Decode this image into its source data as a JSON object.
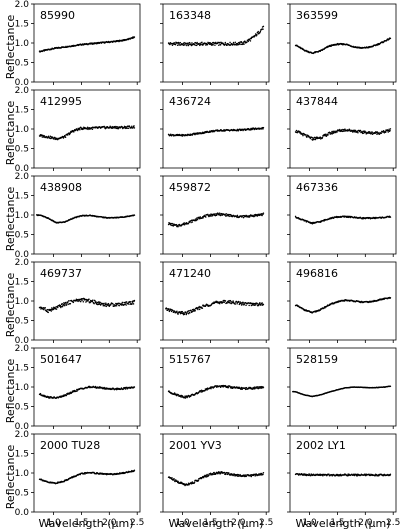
{
  "chart_data": {
    "type": "scatter",
    "layout": {
      "rows": 6,
      "cols": 3,
      "sharex": true,
      "sharey": true
    },
    "xlabel": "Wavelength (μm)",
    "ylabel": "Reflectance",
    "xlim": [
      0.65,
      2.55
    ],
    "ylim": [
      0.0,
      2.0
    ],
    "xticks": [
      1.0,
      1.5,
      2.0,
      2.5
    ],
    "xticklabels": [
      "1.0",
      "1.5",
      "2.0",
      "2.5"
    ],
    "yticks": [
      0.0,
      0.5,
      1.0,
      1.5,
      2.0
    ],
    "yticklabels": [
      "0.0",
      "0.5",
      "1.0",
      "1.5",
      "2.0"
    ],
    "marker_color": "#000000",
    "x": [
      0.75,
      0.9,
      1.05,
      1.2,
      1.35,
      1.5,
      1.65,
      1.8,
      1.95,
      2.1,
      2.25,
      2.35,
      2.45
    ],
    "panels": [
      {
        "label": "85990",
        "x_range": [
          0.75,
          2.45
        ],
        "y": [
          0.78,
          0.83,
          0.87,
          0.9,
          0.93,
          0.96,
          0.98,
          1.0,
          1.02,
          1.04,
          1.07,
          1.1,
          1.15
        ],
        "noise": 0.015
      },
      {
        "label": "163348",
        "x_range": [
          0.75,
          2.45
        ],
        "y": [
          0.98,
          0.98,
          0.97,
          0.97,
          0.98,
          0.98,
          0.98,
          0.98,
          0.98,
          1.0,
          1.12,
          1.25,
          1.4
        ],
        "noise": 0.04
      },
      {
        "label": "363599",
        "x_range": [
          0.75,
          2.45
        ],
        "y": [
          0.95,
          0.82,
          0.74,
          0.8,
          0.92,
          0.97,
          0.97,
          0.9,
          0.87,
          0.9,
          0.98,
          1.05,
          1.12
        ],
        "noise": 0.015
      },
      {
        "label": "412995",
        "x_range": [
          0.75,
          2.45
        ],
        "y": [
          0.83,
          0.8,
          0.75,
          0.8,
          0.95,
          1.02,
          1.02,
          1.03,
          1.04,
          1.04,
          1.04,
          1.05,
          1.05
        ],
        "noise": 0.03
      },
      {
        "label": "436724",
        "x_range": [
          0.75,
          2.45
        ],
        "y": [
          0.85,
          0.84,
          0.84,
          0.87,
          0.9,
          0.94,
          0.96,
          0.97,
          0.97,
          0.98,
          1.0,
          1.01,
          1.02
        ],
        "noise": 0.02
      },
      {
        "label": "437844",
        "x_range": [
          0.75,
          2.45
        ],
        "y": [
          0.95,
          0.85,
          0.75,
          0.78,
          0.88,
          0.95,
          0.98,
          0.95,
          0.92,
          0.9,
          0.9,
          0.93,
          0.97
        ],
        "noise": 0.035
      },
      {
        "label": "438908",
        "x_range": [
          0.7,
          2.45
        ],
        "y": [
          1.0,
          0.92,
          0.8,
          0.82,
          0.92,
          0.98,
          0.99,
          0.96,
          0.93,
          0.93,
          0.95,
          0.97,
          1.0
        ],
        "noise": 0.01
      },
      {
        "label": "459872",
        "x_range": [
          0.75,
          2.45
        ],
        "y": [
          0.78,
          0.72,
          0.78,
          0.86,
          0.95,
          1.0,
          1.02,
          1.0,
          0.96,
          0.96,
          0.98,
          1.0,
          1.02
        ],
        "noise": 0.03
      },
      {
        "label": "467336",
        "x_range": [
          0.75,
          2.45
        ],
        "y": [
          0.95,
          0.86,
          0.79,
          0.83,
          0.91,
          0.95,
          0.96,
          0.94,
          0.92,
          0.92,
          0.93,
          0.94,
          0.96
        ],
        "noise": 0.015
      },
      {
        "label": "469737",
        "x_range": [
          0.75,
          2.45
        ],
        "y": [
          0.85,
          0.75,
          0.82,
          0.92,
          1.0,
          1.03,
          1.0,
          0.95,
          0.9,
          0.91,
          0.93,
          0.95,
          0.97
        ],
        "noise": 0.045
      },
      {
        "label": "471240",
        "x_range": [
          0.7,
          2.45
        ],
        "y": [
          0.78,
          0.7,
          0.68,
          0.76,
          0.85,
          0.92,
          0.97,
          0.98,
          0.96,
          0.93,
          0.92,
          0.92,
          0.92
        ],
        "noise": 0.04
      },
      {
        "label": "496816",
        "x_range": [
          0.75,
          2.45
        ],
        "y": [
          0.9,
          0.78,
          0.7,
          0.78,
          0.9,
          0.98,
          1.02,
          1.0,
          0.97,
          0.98,
          1.03,
          1.06,
          1.08
        ],
        "noise": 0.015
      },
      {
        "label": "501647",
        "x_range": [
          0.75,
          2.45
        ],
        "y": [
          0.82,
          0.74,
          0.72,
          0.78,
          0.88,
          0.96,
          1.0,
          0.99,
          0.96,
          0.95,
          0.96,
          0.98,
          1.0
        ],
        "noise": 0.02
      },
      {
        "label": "515767",
        "x_range": [
          0.75,
          2.45
        ],
        "y": [
          0.88,
          0.8,
          0.74,
          0.8,
          0.9,
          0.98,
          1.02,
          1.01,
          0.98,
          0.96,
          0.97,
          0.98,
          1.0
        ],
        "noise": 0.025
      },
      {
        "label": "528159",
        "x_range": [
          0.7,
          2.45
        ],
        "y": [
          0.88,
          0.8,
          0.76,
          0.8,
          0.87,
          0.93,
          0.98,
          1.0,
          0.99,
          0.98,
          0.99,
          1.0,
          1.02
        ],
        "noise": 0.005
      },
      {
        "label": "2000 TU28",
        "x_range": [
          0.75,
          2.45
        ],
        "y": [
          0.85,
          0.76,
          0.74,
          0.8,
          0.9,
          0.98,
          1.01,
          0.99,
          0.97,
          0.97,
          1.0,
          1.03,
          1.06
        ],
        "noise": 0.015
      },
      {
        "label": "2001 YV3",
        "x_range": [
          0.75,
          2.45
        ],
        "y": [
          0.9,
          0.78,
          0.7,
          0.76,
          0.88,
          0.97,
          1.01,
          0.99,
          0.95,
          0.93,
          0.94,
          0.96,
          0.98
        ],
        "noise": 0.03
      },
      {
        "label": "2002 LY1",
        "x_range": [
          0.75,
          2.45
        ],
        "y": [
          0.96,
          0.96,
          0.95,
          0.95,
          0.95,
          0.95,
          0.95,
          0.95,
          0.95,
          0.95,
          0.95,
          0.95,
          0.95
        ],
        "noise": 0.02
      }
    ]
  }
}
